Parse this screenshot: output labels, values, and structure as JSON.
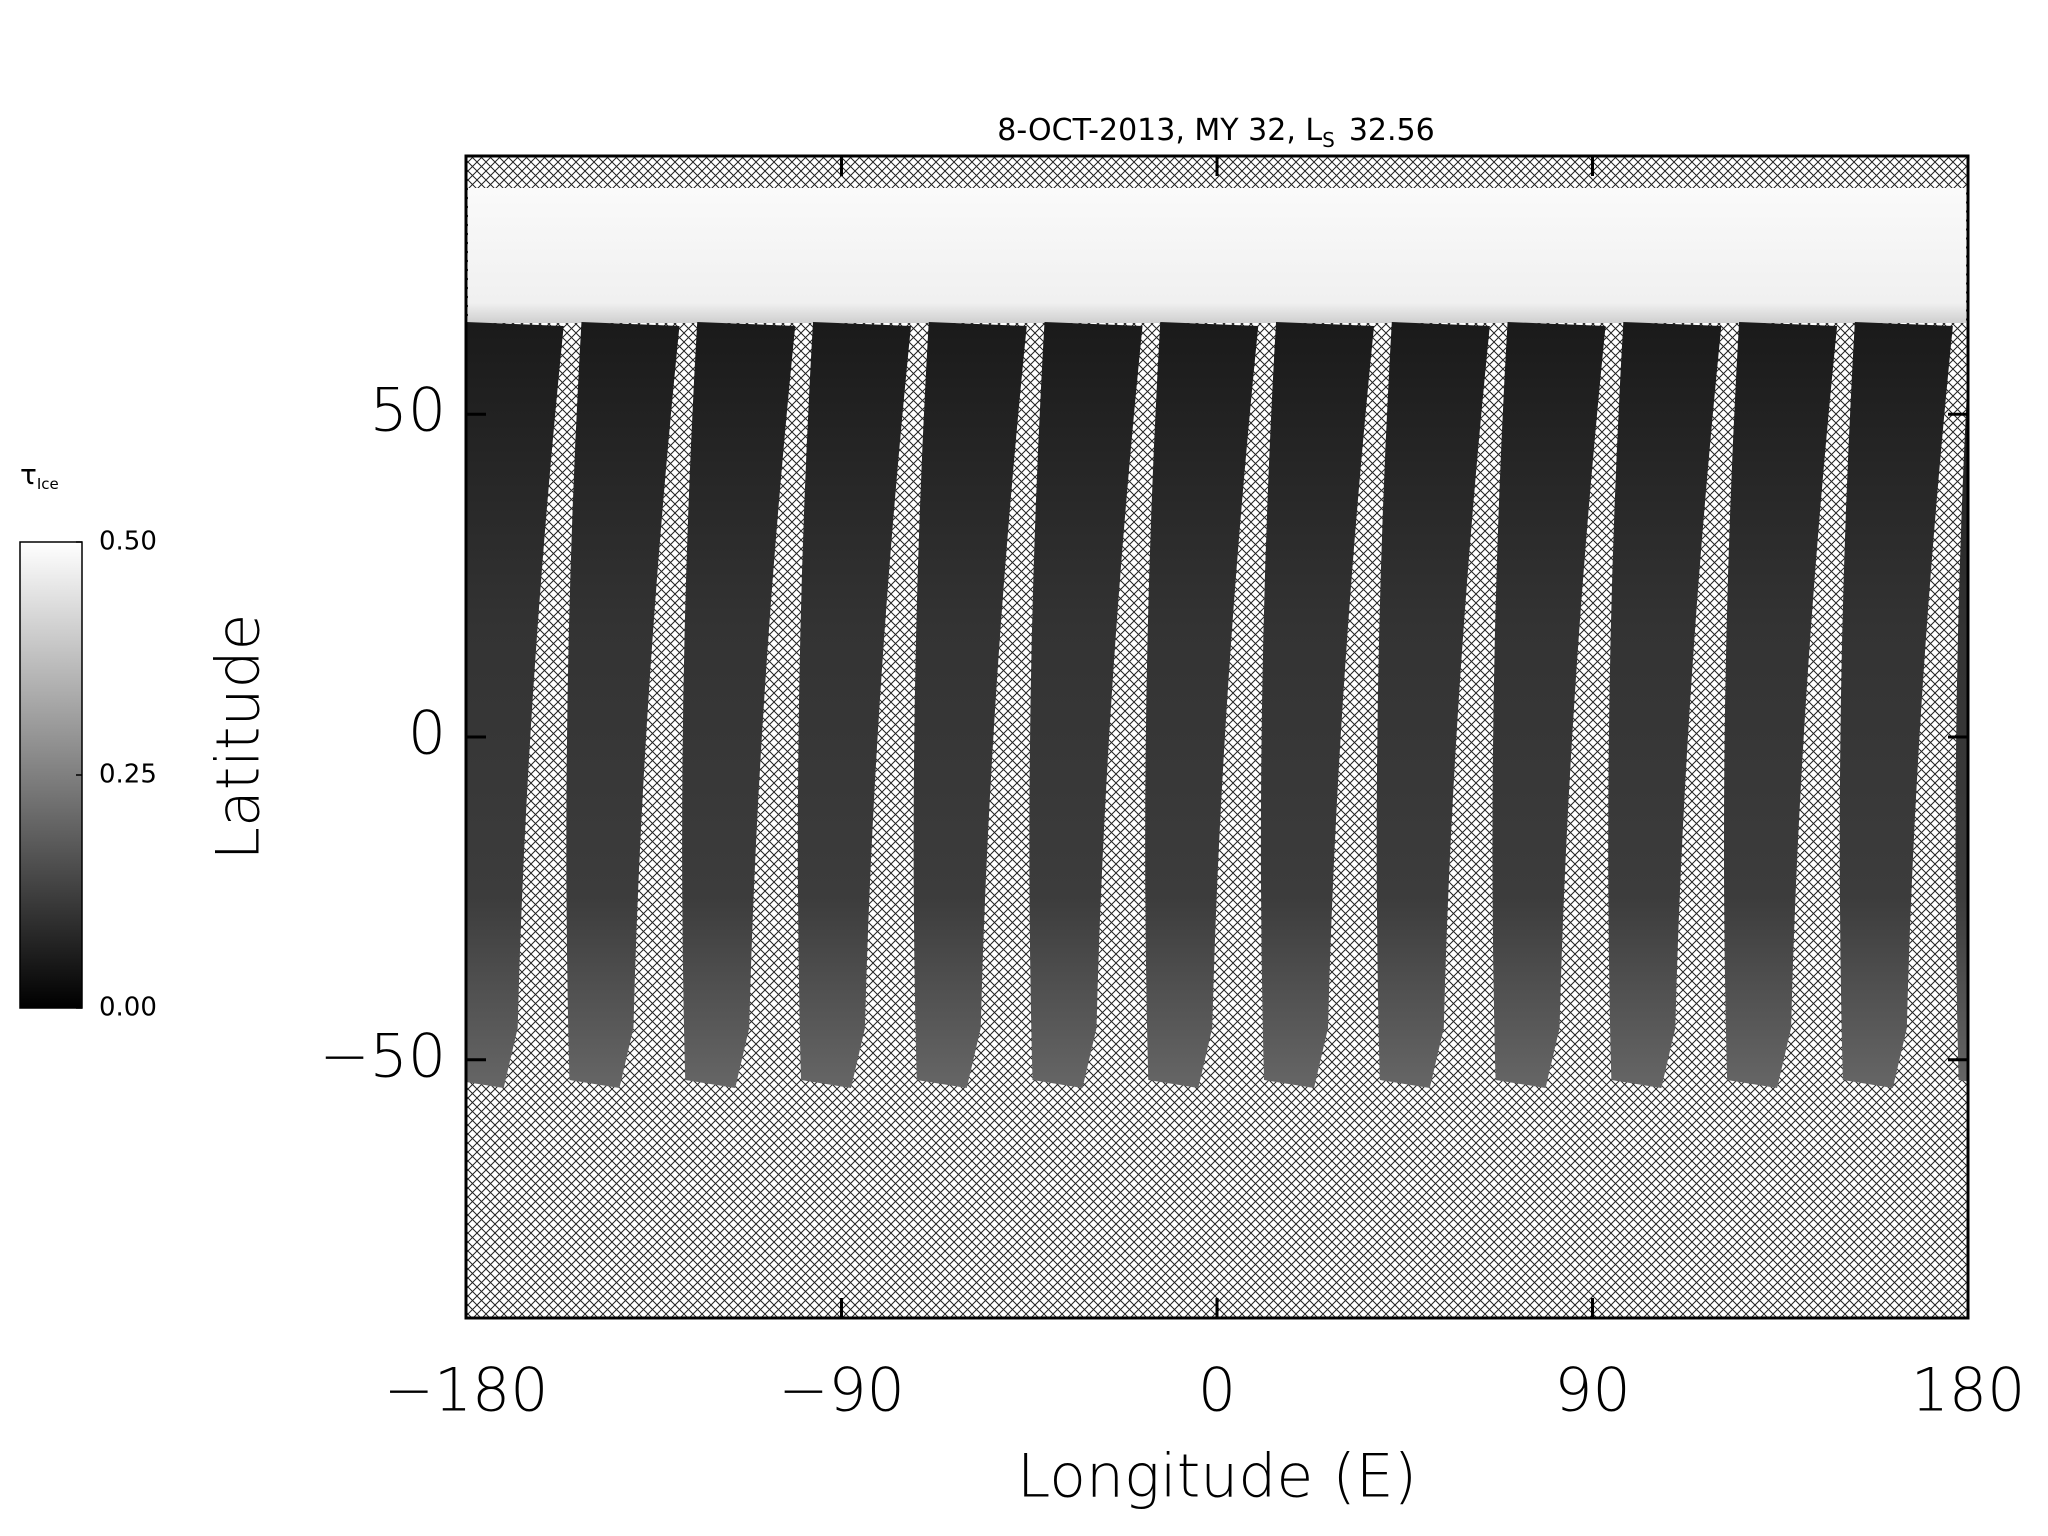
{
  "chart_data": {
    "type": "map",
    "title": "8-OCT-2013, MY 32,  L",
    "title_subscript": "S",
    "title_value": "32.56",
    "xlabel": "Longitude (E)",
    "ylabel": "Latitude",
    "xlim": [
      -180,
      180
    ],
    "xticks": [
      {
        "value": -180,
        "label": "−180"
      },
      {
        "value": -90,
        "label": "−90"
      },
      0,
      90,
      180
    ],
    "ylim": [
      -90,
      90
    ],
    "yticks": [
      {
        "value": -50,
        "label": "−50"
      },
      0,
      50
    ],
    "colorbar": {
      "label": "τ",
      "label_subscript": "Ice",
      "lim": [
        0,
        0.5
      ],
      "ticks": [
        {
          "value": 0,
          "label": "0.00"
        },
        {
          "value": 0.25,
          "label": "0.25"
        },
        {
          "value": 0.5,
          "label": "0.50"
        }
      ],
      "colors": [
        "#000000",
        "#ffffff"
      ]
    }
  }
}
